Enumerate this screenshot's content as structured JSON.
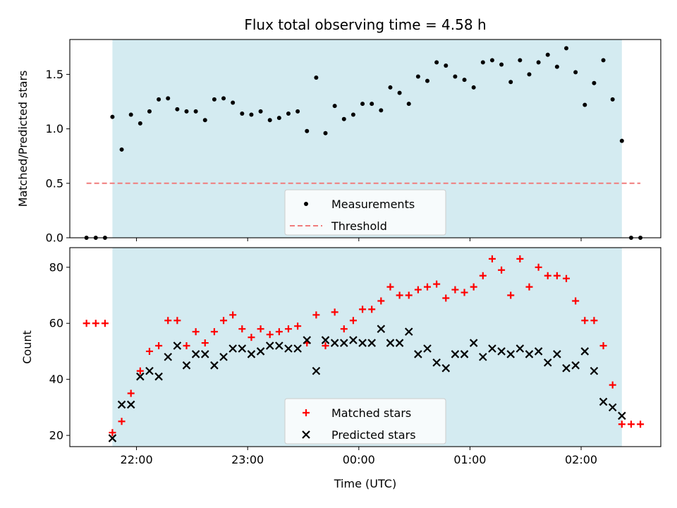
{
  "chart_data": {
    "title": "Flux total observing time = 4.58 h",
    "xlabel": "Time (UTC)",
    "x_tick_labels": [
      "22:00",
      "23:00",
      "00:00",
      "01:00",
      "02:00"
    ],
    "colors": {
      "observing_span": "#d4ebf1",
      "measurement": "#000000",
      "threshold": "#f07c7c",
      "matched": "#ff0000",
      "predicted": "#000000"
    },
    "observing_span": [
      "21:47",
      "02:22"
    ],
    "panels": [
      {
        "id": "ratio",
        "type": "scatter",
        "ylabel": "Matched/Predicted stars",
        "ylim": [
          0,
          1.82
        ],
        "yticks": [
          0,
          0.5,
          1,
          1.5
        ],
        "ytick_labels": [
          "0.0",
          "0.5",
          "1.0",
          "1.5"
        ],
        "legend_position": "lower-center",
        "series": [
          {
            "name": "Measurements",
            "marker": "dot",
            "x": [
              "21:33",
              "21:38",
              "21:43",
              "21:47",
              "21:52",
              "21:57",
              "22:02",
              "22:07",
              "22:12",
              "22:17",
              "22:22",
              "22:27",
              "22:32",
              "22:37",
              "22:42",
              "22:47",
              "22:52",
              "22:57",
              "23:02",
              "23:07",
              "23:12",
              "23:17",
              "23:22",
              "23:27",
              "23:32",
              "23:37",
              "23:42",
              "23:47",
              "23:52",
              "23:57",
              "00:02",
              "00:07",
              "00:12",
              "00:17",
              "00:22",
              "00:27",
              "00:32",
              "00:37",
              "00:42",
              "00:47",
              "00:52",
              "00:57",
              "01:02",
              "01:07",
              "01:12",
              "01:17",
              "01:22",
              "01:27",
              "01:32",
              "01:37",
              "01:42",
              "01:47",
              "01:52",
              "01:57",
              "02:02",
              "02:07",
              "02:12",
              "02:17",
              "02:22",
              "02:27",
              "02:32"
            ],
            "y": [
              0,
              0,
              0,
              1.11,
              0.81,
              1.13,
              1.05,
              1.16,
              1.27,
              1.28,
              1.18,
              1.16,
              1.16,
              1.08,
              1.27,
              1.28,
              1.24,
              1.14,
              1.13,
              1.16,
              1.08,
              1.1,
              1.14,
              1.16,
              0.98,
              1.47,
              0.96,
              1.21,
              1.09,
              1.13,
              1.23,
              1.23,
              1.17,
              1.38,
              1.33,
              1.23,
              1.48,
              1.44,
              1.61,
              1.58,
              1.48,
              1.45,
              1.38,
              1.61,
              1.63,
              1.59,
              1.43,
              1.63,
              1.5,
              1.61,
              1.68,
              1.57,
              1.74,
              1.52,
              1.22,
              1.42,
              1.63,
              1.27,
              0.89,
              0,
              0
            ]
          },
          {
            "name": "Threshold",
            "marker": "dashed-line",
            "x": [
              "21:33",
              "02:32"
            ],
            "y": [
              0.5,
              0.5
            ]
          }
        ]
      },
      {
        "id": "counts",
        "type": "scatter",
        "ylabel": "Count",
        "ylim": [
          16,
          87
        ],
        "yticks": [
          20,
          40,
          60,
          80
        ],
        "ytick_labels": [
          "20",
          "40",
          "60",
          "80"
        ],
        "legend_position": "lower-center",
        "series": [
          {
            "name": "Matched stars",
            "marker": "plus",
            "x": [
              "21:33",
              "21:38",
              "21:43",
              "21:47",
              "21:52",
              "21:57",
              "22:02",
              "22:07",
              "22:12",
              "22:17",
              "22:22",
              "22:27",
              "22:32",
              "22:37",
              "22:42",
              "22:47",
              "22:52",
              "22:57",
              "23:02",
              "23:07",
              "23:12",
              "23:17",
              "23:22",
              "23:27",
              "23:32",
              "23:37",
              "23:42",
              "23:47",
              "23:52",
              "23:57",
              "00:02",
              "00:07",
              "00:12",
              "00:17",
              "00:22",
              "00:27",
              "00:32",
              "00:37",
              "00:42",
              "00:47",
              "00:52",
              "00:57",
              "01:02",
              "01:07",
              "01:12",
              "01:17",
              "01:22",
              "01:27",
              "01:32",
              "01:37",
              "01:42",
              "01:47",
              "01:52",
              "01:57",
              "02:02",
              "02:07",
              "02:12",
              "02:17",
              "02:22",
              "02:27",
              "02:32"
            ],
            "y": [
              60,
              60,
              60,
              21,
              25,
              35,
              43,
              50,
              52,
              61,
              61,
              52,
              57,
              53,
              57,
              61,
              63,
              58,
              55,
              58,
              56,
              57,
              58,
              59,
              53,
              63,
              52,
              64,
              58,
              61,
              65,
              65,
              68,
              73,
              70,
              70,
              72,
              73,
              74,
              69,
              72,
              71,
              73,
              77,
              83,
              79,
              70,
              83,
              73,
              80,
              77,
              77,
              76,
              68,
              61,
              61,
              52,
              38,
              24,
              24,
              24
            ]
          },
          {
            "name": "Predicted stars",
            "marker": "cross",
            "x": [
              "21:47",
              "21:52",
              "21:57",
              "22:02",
              "22:07",
              "22:12",
              "22:17",
              "22:22",
              "22:27",
              "22:32",
              "22:37",
              "22:42",
              "22:47",
              "22:52",
              "22:57",
              "23:02",
              "23:07",
              "23:12",
              "23:17",
              "23:22",
              "23:27",
              "23:32",
              "23:37",
              "23:42",
              "23:47",
              "23:52",
              "23:57",
              "00:02",
              "00:07",
              "00:12",
              "00:17",
              "00:22",
              "00:27",
              "00:32",
              "00:37",
              "00:42",
              "00:47",
              "00:52",
              "00:57",
              "01:02",
              "01:07",
              "01:12",
              "01:17",
              "01:22",
              "01:27",
              "01:32",
              "01:37",
              "01:42",
              "01:47",
              "01:52",
              "01:57",
              "02:02",
              "02:07",
              "02:12",
              "02:17",
              "02:22"
            ],
            "y": [
              19,
              31,
              31,
              41,
              43,
              41,
              48,
              52,
              45,
              49,
              49,
              45,
              48,
              51,
              51,
              49,
              50,
              52,
              52,
              51,
              51,
              54,
              43,
              54,
              53,
              53,
              54,
              53,
              53,
              58,
              53,
              53,
              57,
              49,
              51,
              46,
              44,
              49,
              49,
              53,
              48,
              51,
              50,
              49,
              51,
              49,
              50,
              46,
              49,
              44,
              45,
              50,
              43,
              32,
              30,
              27
            ]
          }
        ]
      }
    ]
  }
}
